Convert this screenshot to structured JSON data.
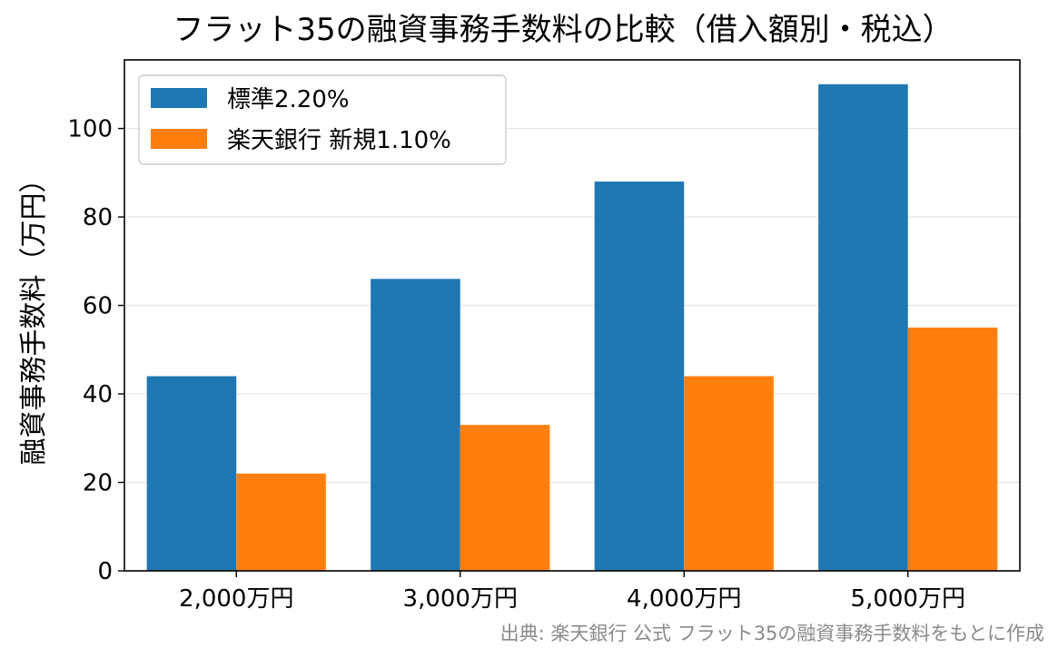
{
  "chart_data": {
    "type": "bar",
    "title": "フラット35の融資事務手数料の比較（借入額別・税込）",
    "ylabel": "融資事務手数料（万円）",
    "xlabel": "",
    "categories": [
      "2,000万円",
      "3,000万円",
      "4,000万円",
      "5,000万円"
    ],
    "series": [
      {
        "name": "標準2.20%",
        "color": "#1f77b4",
        "values": [
          44,
          66,
          88,
          110
        ]
      },
      {
        "name": "楽天銀行 新規1.10%",
        "color": "#ff7f0e",
        "values": [
          22,
          33,
          44,
          55
        ]
      }
    ],
    "ylim": [
      0,
      115.5
    ],
    "yticks": [
      0,
      20,
      40,
      60,
      80,
      100
    ],
    "grid": "horizontal",
    "legend_position": "top-left",
    "source": "出典: 楽天銀行 公式 フラット35の融資事務手数料をもとに作成"
  }
}
